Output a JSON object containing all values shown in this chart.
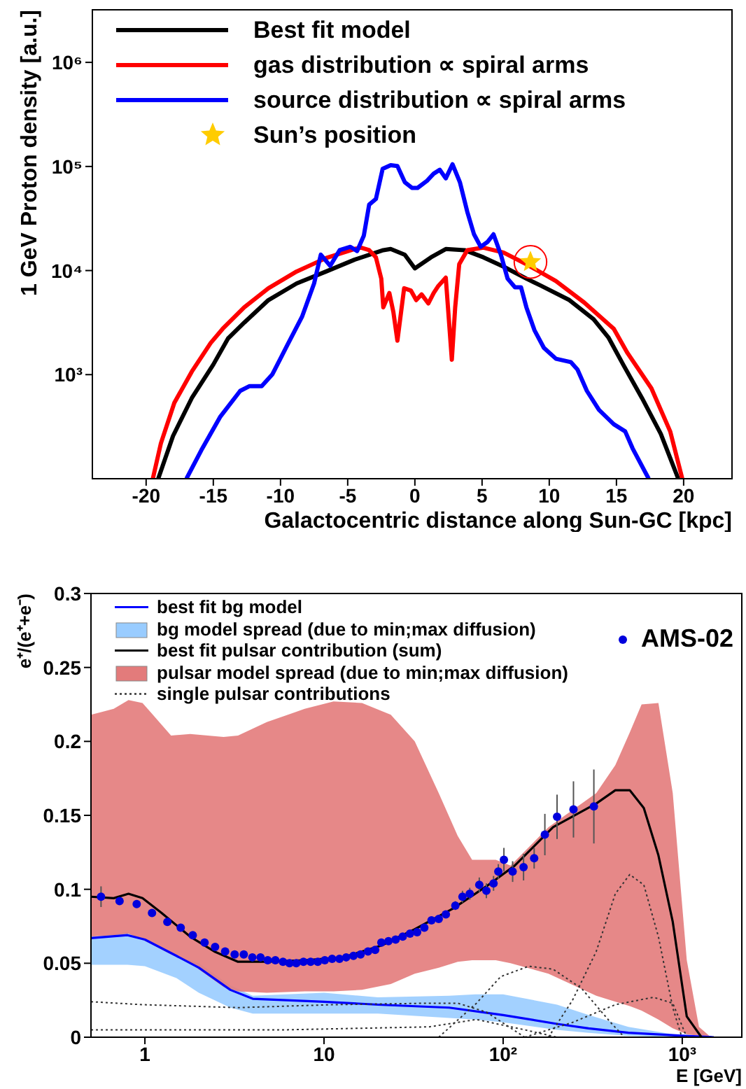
{
  "chart_data": [
    {
      "type": "line",
      "xlabel": "Galactocentric distance along Sun-GC [kpc]",
      "ylabel": "1 GeV Proton density [a.u.]",
      "xlim": [
        -24,
        23.6
      ],
      "xticks": [
        -20,
        -15,
        -10,
        -5,
        0,
        5,
        10,
        15,
        20
      ],
      "ylim": [
        100,
        3200000
      ],
      "yticks": [
        {
          "value": 1000,
          "label": "10³"
        },
        {
          "value": 10000,
          "label": "10⁴"
        },
        {
          "value": 100000,
          "label": "10⁵"
        },
        {
          "value": 1000000,
          "label": "10⁶"
        }
      ],
      "log": "y",
      "legend": "top left",
      "marker": "none",
      "line_style": "solid",
      "series": [
        {
          "name": "Best fit model",
          "color": "#000000",
          "x": [
            -19.1,
            -18.0,
            -16.6,
            -15.0,
            -13.9,
            -12.7,
            -10.9,
            -8.8,
            -6.6,
            -4.5,
            -2.35,
            -1.8,
            -0.75,
            0,
            1.2,
            2.3,
            3.7,
            5.1,
            6.6,
            8.3,
            9.4,
            11.5,
            13.3,
            14.4,
            15.5,
            16.9,
            18.3,
            19.6
          ],
          "values": [
            100,
            257,
            596,
            1250,
            2230,
            3160,
            5200,
            7520,
            9800,
            12700,
            15700,
            16100,
            14200,
            10500,
            13400,
            16100,
            15700,
            13400,
            10900,
            8360,
            7130,
            5200,
            3410,
            2280,
            1250,
            596,
            270,
            100
          ]
        },
        {
          "name": "gas distribution ∝ spiral arms",
          "color": "#ff0000",
          "x": [
            -19.5,
            -18.9,
            -17.9,
            -16.6,
            -15.2,
            -14.3,
            -12.7,
            -10.9,
            -8.8,
            -6.6,
            -4.5,
            -4.0,
            -3.4,
            -2.9,
            -2.5,
            -2.35,
            -1.9,
            -1.6,
            -1.3,
            -0.8,
            -0.3,
            0.1,
            0.5,
            1.0,
            1.4,
            1.75,
            2.3,
            2.75,
            3.0,
            3.3,
            3.9,
            5.1,
            6.6,
            8.3,
            10.5,
            12.6,
            14.8,
            15.8,
            17.6,
            19.0,
            19.9
          ],
          "values": [
            100,
            219,
            536,
            1070,
            2010,
            2760,
            4430,
            6760,
            9790,
            13200,
            16100,
            16600,
            15700,
            13400,
            8360,
            4430,
            6080,
            3990,
            2120,
            6760,
            6430,
            5200,
            5900,
            4830,
            6080,
            7130,
            8540,
            1390,
            4430,
            11500,
            15700,
            16600,
            14900,
            11500,
            7930,
            4930,
            2760,
            1630,
            740,
            285,
            100
          ]
        },
        {
          "name": "source distribution ∝ spiral arms",
          "color": "#0000ff",
          "x": [
            -17.0,
            -15.9,
            -14.5,
            -13.0,
            -12.3,
            -11.4,
            -10.6,
            -9.5,
            -8.4,
            -7.5,
            -7.0,
            -6.3,
            -5.6,
            -4.8,
            -4.3,
            -3.8,
            -3.4,
            -2.9,
            -2.4,
            -1.8,
            -1.3,
            -0.75,
            -0.2,
            0.2,
            0.9,
            1.4,
            1.85,
            2.3,
            2.8,
            3.35,
            3.9,
            4.4,
            4.9,
            5.4,
            5.85,
            6.4,
            6.9,
            7.45,
            7.9,
            8.3,
            8.9,
            9.6,
            10.5,
            11.6,
            12.1,
            12.8,
            13.7,
            14.8,
            15.65,
            16.2,
            17.4
          ],
          "values": [
            100,
            187,
            391,
            698,
            776,
            776,
            1010,
            1910,
            3590,
            7520,
            14200,
            11100,
            15700,
            16900,
            15400,
            21600,
            43000,
            48700,
            94800,
            103000,
            101000,
            70600,
            62200,
            62200,
            72800,
            85300,
            92900,
            76800,
            105000,
            70600,
            36700,
            22300,
            16900,
            18800,
            22300,
            14200,
            8360,
            6900,
            6900,
            4430,
            2670,
            1810,
            1420,
            1320,
            1120,
            698,
            458,
            334,
            285,
            196,
            100
          ]
        },
        {
          "name": "Sun’s position",
          "type": "scatter",
          "marker": "star",
          "color": "#ffcc00",
          "x": [
            8.6
          ],
          "values": [
            12100
          ]
        }
      ]
    },
    {
      "type": "line",
      "xlabel": "E [GeV]",
      "ylabel": "e⁺/(e⁺+e⁻)",
      "xlim": [
        0.5,
        2150
      ],
      "xticks": [
        1,
        10,
        {
          "value": 100,
          "label": "10²"
        },
        {
          "value": 1000,
          "label": "10³"
        }
      ],
      "ylim": [
        0,
        0.3
      ],
      "yticks": [
        0,
        0.05,
        0.1,
        0.15,
        0.2,
        0.25,
        0.3
      ],
      "log": "x",
      "legend": "top left",
      "marker": "none",
      "line_style": "solid",
      "series": [
        {
          "name": "best fit bg model",
          "color": "#0000ff",
          "x": [
            0.5,
            0.8,
            1,
            1.5,
            2,
            3,
            4,
            10,
            20,
            50,
            100,
            200,
            300,
            500,
            1000,
            1500
          ],
          "values": [
            0.067,
            0.069,
            0.066,
            0.055,
            0.047,
            0.032,
            0.026,
            0.024,
            0.022,
            0.02,
            0.015,
            0.009,
            0.006,
            0.003,
            0.001,
            0
          ]
        },
        {
          "name": "bg model spread (due to min;max diffusion)",
          "type": "area",
          "color": "#99ccff",
          "x": [
            0.5,
            0.8,
            1,
            1.5,
            2,
            3,
            4,
            10,
            20,
            50,
            70,
            100,
            200,
            300,
            500,
            1000,
            1500
          ],
          "values": [
            null,
            null,
            null,
            null,
            null,
            null,
            null,
            null,
            null,
            null,
            null,
            null,
            null,
            null,
            null,
            null,
            null
          ],
          "lower": [
            0.049,
            0.049,
            0.048,
            0.04,
            0.03,
            0.02,
            0.016,
            0.016,
            0.016,
            0.013,
            0.012,
            0.01,
            0.005,
            0.003,
            0.001,
            0,
            0
          ],
          "upper": [
            0.068,
            0.071,
            0.066,
            0.055,
            0.05,
            0.035,
            0.028,
            0.03,
            0.027,
            0.028,
            0.029,
            0.029,
            0.022,
            0.015,
            0.007,
            0.001,
            0
          ]
        },
        {
          "name": "best fit pulsar contribution (sum)",
          "color": "#000000",
          "x": [
            0.5,
            0.67,
            0.81,
            0.97,
            1.24,
            1.79,
            2.44,
            3.31,
            4.79,
            7.8,
            12.8,
            20.9,
            32.1,
            52.5,
            80.6,
            116,
            190,
            331,
            423,
            509,
            610,
            736,
            885,
            1060,
            1280
          ],
          "values": [
            0.095,
            0.094,
            0.097,
            0.094,
            0.084,
            0.068,
            0.058,
            0.051,
            0.051,
            0.052,
            0.054,
            0.062,
            0.073,
            0.087,
            0.102,
            0.116,
            0.142,
            0.158,
            0.167,
            0.167,
            0.155,
            0.123,
            0.078,
            0.014,
            0
          ]
        },
        {
          "name": "pulsar model spread (due to min;max diffusion)",
          "type": "area",
          "color": "#e37b7b",
          "x": [
            0.5,
            0.67,
            0.81,
            0.97,
            1.4,
            1.79,
            2.75,
            3.31,
            4.79,
            7.8,
            11.3,
            16.3,
            23.6,
            32.1,
            43.7,
            55.8,
            67.1,
            91,
            110,
            179,
            331,
            423,
            509,
            593,
            736,
            885,
            1060,
            1240,
            1445
          ],
          "lower": [
            0.068,
            0.069,
            0.07,
            0.066,
            0.056,
            0.05,
            0.034,
            0.031,
            0.03,
            0.031,
            0.031,
            0.032,
            0.036,
            0.043,
            0.047,
            0.051,
            0.052,
            0.052,
            0.05,
            0.043,
            0.028,
            0.024,
            0.021,
            0.018,
            0.012,
            0.006,
            0.002,
            0.001,
            0
          ],
          "values": [
            null,
            null,
            null,
            null,
            null,
            null,
            null,
            null,
            null,
            null,
            null,
            null,
            null,
            null,
            null,
            null,
            null,
            null,
            null,
            null,
            null,
            null,
            null,
            null,
            null,
            null,
            null,
            null,
            null
          ],
          "upper": [
            0.218,
            0.222,
            0.228,
            0.226,
            0.204,
            0.205,
            0.203,
            0.204,
            0.213,
            0.222,
            0.227,
            0.226,
            0.218,
            0.2,
            0.165,
            0.136,
            0.12,
            0.12,
            0.116,
            0.142,
            0.165,
            0.184,
            0.206,
            0.225,
            0.226,
            0.165,
            0.052,
            0.007,
            0
          ]
        },
        {
          "name": "single pulsar contributions",
          "line_style": "dotted",
          "color": "#333333",
          "x": [
            0.5,
            0.97,
            3.31,
            11.3,
            38.6,
            55.8,
            80.6,
            132
          ],
          "values": [
            0.024,
            0.022,
            0.02,
            0.022,
            0.023,
            0.023,
            0.017,
            0
          ]
        },
        {
          "line_style": "dotted",
          "color": "#333333",
          "x": [
            0.5,
            6.1,
            38.6,
            71,
            132,
            200
          ],
          "values": [
            0.005,
            0.005,
            0.007,
            0.012,
            0.005,
            0
          ]
        },
        {
          "line_style": "dotted",
          "color": "#333333",
          "x": [
            43.7,
            71,
            97,
            139,
            190,
            274,
            398,
            475
          ],
          "values": [
            0,
            0.023,
            0.041,
            0.048,
            0.046,
            0.033,
            0.01,
            0
          ]
        },
        {
          "line_style": "dotted",
          "color": "#333333",
          "x": [
            179,
            244,
            331,
            423,
            509,
            610,
            736,
            885,
            995
          ],
          "values": [
            0,
            0.025,
            0.058,
            0.097,
            0.11,
            0.103,
            0.068,
            0.02,
            0
          ]
        },
        {
          "line_style": "dotted",
          "color": "#333333",
          "x": [
            132,
            244,
            423,
            690,
            885,
            1060
          ],
          "values": [
            0,
            0.01,
            0.022,
            0.027,
            0.023,
            0
          ]
        },
        {
          "name": "AMS-02",
          "type": "scatter",
          "marker": "circle",
          "color": "#0000dd",
          "x": [
            0.569,
            0.722,
            0.9,
            1.096,
            1.335,
            1.585,
            1.85,
            2.154,
            2.466,
            2.805,
            3.17,
            3.565,
            3.98,
            4.42,
            4.85,
            5.35,
            5.9,
            6.42,
            7.0,
            7.68,
            8.42,
            9.23,
            10.1,
            11.1,
            12.2,
            13.3,
            14.6,
            16.0,
            17.6,
            19.3,
            20.9,
            22.9,
            25.1,
            27.5,
            30.2,
            33.1,
            36.3,
            39.8,
            43.7,
            47.9,
            54.1,
            59.3,
            65.1,
            73.6,
            80.6,
            88.4,
            94.0,
            101,
            113,
            130,
            149,
            171,
            200,
            247,
            321
          ],
          "values": [
            0.095,
            0.092,
            0.09,
            0.084,
            0.078,
            0.074,
            0.069,
            0.064,
            0.061,
            0.058,
            0.056,
            0.056,
            0.054,
            0.054,
            0.052,
            0.052,
            0.051,
            0.05,
            0.05,
            0.051,
            0.051,
            0.051,
            0.052,
            0.053,
            0.053,
            0.054,
            0.055,
            0.056,
            0.058,
            0.059,
            0.064,
            0.065,
            0.066,
            0.068,
            0.07,
            0.071,
            0.074,
            0.079,
            0.08,
            0.083,
            0.089,
            0.095,
            0.097,
            0.103,
            0.099,
            0.104,
            0.112,
            0.12,
            0.112,
            0.115,
            0.121,
            0.137,
            0.149,
            0.154,
            0.156
          ],
          "errors": [
            0.007,
            null,
            null,
            null,
            null,
            null,
            null,
            null,
            null,
            null,
            null,
            null,
            null,
            null,
            null,
            null,
            null,
            null,
            null,
            null,
            null,
            null,
            null,
            null,
            null,
            null,
            null,
            null,
            null,
            null,
            null,
            null,
            null,
            null,
            null,
            null,
            null,
            null,
            null,
            null,
            0.003,
            0.004,
            0.004,
            0.005,
            0.005,
            0.005,
            0.005,
            0.008,
            0.007,
            0.009,
            0.007,
            0.014,
            0.015,
            0.019,
            0.025
          ]
        }
      ]
    }
  ]
}
